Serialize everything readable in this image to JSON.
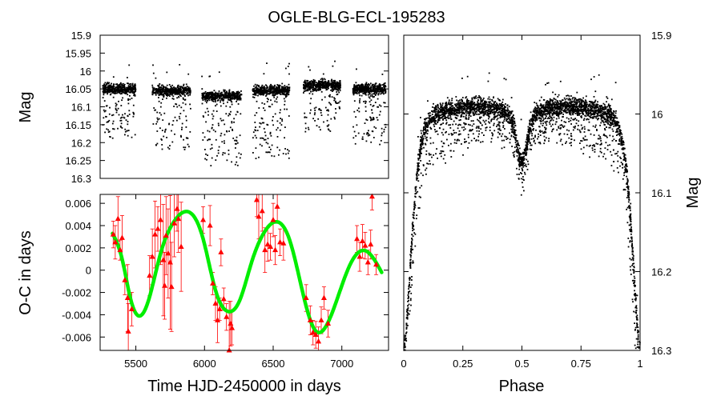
{
  "title": "OGLE-BLG-ECL-195283",
  "chart_data": [
    {
      "id": "lightcurve-time",
      "type": "scatter",
      "title": "OGLE-BLG-ECL-195283",
      "xlabel": "",
      "ylabel": "Mag",
      "xlim": [
        5240,
        7340
      ],
      "ylim": [
        16.3,
        15.9
      ],
      "y_inverted": true,
      "ytick_labels": [
        "15.9",
        "15.95",
        "16",
        "16.05",
        "16.1",
        "16.15",
        "16.2",
        "16.25",
        "16.3"
      ],
      "ytick_values": [
        15.9,
        15.95,
        16.0,
        16.05,
        16.1,
        16.15,
        16.2,
        16.25,
        16.3
      ],
      "seasons": [
        {
          "start": 5260,
          "end": 5500,
          "mag_center": 16.05,
          "faint_to": 16.19
        },
        {
          "start": 5620,
          "end": 5900,
          "mag_center": 16.055,
          "faint_to": 16.22
        },
        {
          "start": 5980,
          "end": 6270,
          "mag_center": 16.07,
          "faint_to": 16.265
        },
        {
          "start": 6350,
          "end": 6620,
          "mag_center": 16.055,
          "faint_to": 16.245
        },
        {
          "start": 6720,
          "end": 6990,
          "mag_center": 16.04,
          "faint_to": 16.17
        },
        {
          "start": 7080,
          "end": 7320,
          "mag_center": 16.05,
          "faint_to": 16.21
        }
      ]
    },
    {
      "id": "o-c",
      "type": "scatter",
      "xlabel": "Time HJD-2450000 in days",
      "ylabel": "O-C in days",
      "xlim": [
        5240,
        7340
      ],
      "ylim": [
        -0.0072,
        0.0068
      ],
      "xtick_labels": [
        "5500",
        "6000",
        "6500",
        "7000"
      ],
      "xtick_values": [
        5500,
        6000,
        6500,
        7000
      ],
      "ytick_labels": [
        "0.006",
        "0.004",
        "0.002",
        "0",
        "-0.002",
        "-0.004",
        "-0.006"
      ],
      "ytick_values": [
        0.006,
        0.004,
        0.002,
        0,
        -0.002,
        -0.004,
        -0.006
      ],
      "marker_color": "#ff0000",
      "fit_color": "#00ee00",
      "fit": {
        "x_start": 5330,
        "x_end": 7290,
        "curve": [
          [
            5330,
            0.0033
          ],
          [
            5400,
            0.001
          ],
          [
            5460,
            -0.0025
          ],
          [
            5520,
            -0.0041
          ],
          [
            5590,
            -0.0028
          ],
          [
            5680,
            0.0015
          ],
          [
            5780,
            0.0044
          ],
          [
            5890,
            0.0052
          ],
          [
            5990,
            0.0028
          ],
          [
            6080,
            -0.0018
          ],
          [
            6170,
            -0.0037
          ],
          [
            6260,
            -0.0026
          ],
          [
            6340,
            0.0006
          ],
          [
            6440,
            0.0035
          ],
          [
            6540,
            0.0043
          ],
          [
            6620,
            0.0027
          ],
          [
            6700,
            -0.0012
          ],
          [
            6800,
            -0.0053
          ],
          [
            6870,
            -0.0053
          ],
          [
            6960,
            -0.0028
          ],
          [
            7060,
            0.0005
          ],
          [
            7180,
            0.0017
          ],
          [
            7290,
            -0.0002
          ]
        ]
      },
      "points": [
        [
          5335,
          0.0032,
          0.0012
        ],
        [
          5350,
          0.0025,
          0.0015
        ],
        [
          5370,
          0.0046,
          0.002
        ],
        [
          5385,
          0.0018,
          0.0009
        ],
        [
          5400,
          0.0029,
          0.002
        ],
        [
          5420,
          -0.0009,
          0.0013
        ],
        [
          5440,
          -0.0025,
          0.003
        ],
        [
          5445,
          -0.0055,
          0.0025
        ],
        [
          5470,
          -0.0035,
          0.0015
        ],
        [
          5600,
          -0.0005,
          0.0018
        ],
        [
          5620,
          0.0012,
          0.0025
        ],
        [
          5640,
          0.0032,
          0.003
        ],
        [
          5660,
          0.0037,
          0.002
        ],
        [
          5680,
          0.0045,
          0.004
        ],
        [
          5700,
          0.0009,
          0.005
        ],
        [
          5710,
          -0.0014,
          0.003
        ],
        [
          5720,
          0.0031,
          0.0035
        ],
        [
          5735,
          0.0015,
          0.004
        ],
        [
          5750,
          0.0007,
          0.006
        ],
        [
          5760,
          -0.0015,
          0.004
        ],
        [
          5780,
          0.0042,
          0.003
        ],
        [
          5800,
          0.0055,
          0.002
        ],
        [
          5810,
          0.0046,
          0.003
        ],
        [
          5830,
          0.0021,
          0.004
        ],
        [
          5990,
          0.0045,
          0.0012
        ],
        [
          6040,
          0.004,
          0.0018
        ],
        [
          6060,
          -0.0012,
          0.001
        ],
        [
          6080,
          -0.003,
          0.0015
        ],
        [
          6095,
          -0.0045,
          0.002
        ],
        [
          6110,
          -0.0035,
          0.001
        ],
        [
          6120,
          0.0016,
          0.0012
        ],
        [
          6140,
          -0.0026,
          0.001
        ],
        [
          6160,
          -0.0042,
          0.0012
        ],
        [
          6180,
          -0.0073,
          0.0045
        ],
        [
          6190,
          -0.0048,
          0.002
        ],
        [
          6200,
          -0.0052,
          0.0015
        ],
        [
          6380,
          0.0063,
          0.0015
        ],
        [
          6395,
          0.0048,
          0.002
        ],
        [
          6420,
          0.0053,
          0.0018
        ],
        [
          6440,
          0.0018,
          0.002
        ],
        [
          6460,
          0.0023,
          0.0015
        ],
        [
          6480,
          0.0021,
          0.0012
        ],
        [
          6500,
          0.0045,
          0.0015
        ],
        [
          6515,
          0.0018,
          0.0013
        ],
        [
          6530,
          0.0057,
          0.0015
        ],
        [
          6550,
          0.0025,
          0.0012
        ],
        [
          6575,
          0.0024,
          0.0015
        ],
        [
          6740,
          -0.0025,
          0.0012
        ],
        [
          6770,
          -0.0045,
          0.0013
        ],
        [
          6790,
          -0.0056,
          0.0011
        ],
        [
          6810,
          -0.0058,
          0.0012
        ],
        [
          6830,
          -0.0064,
          0.0013
        ],
        [
          6850,
          -0.0045,
          0.0012
        ],
        [
          6870,
          -0.0025,
          0.001
        ],
        [
          6900,
          -0.0048,
          0.0012
        ],
        [
          7110,
          0.0028,
          0.0012
        ],
        [
          7130,
          0.0012,
          0.0013
        ],
        [
          7150,
          0.0026,
          0.0015
        ],
        [
          7170,
          0.0022,
          0.0012
        ],
        [
          7190,
          0.0007,
          0.0011
        ],
        [
          7210,
          0.0023,
          0.0013
        ],
        [
          7220,
          0.0066,
          0.0012
        ],
        [
          7250,
          0.0005,
          0.0009
        ]
      ]
    },
    {
      "id": "phased",
      "type": "scatter",
      "xlabel": "Phase",
      "ylabel": "Mag",
      "xlim": [
        0,
        1
      ],
      "ylim": [
        16.3,
        15.9
      ],
      "y_inverted": true,
      "xtick_labels": [
        "0",
        "0.25",
        "0.5",
        "0.75",
        "1"
      ],
      "xtick_values": [
        0,
        0.25,
        0.5,
        0.75,
        1
      ],
      "ytick_labels": [
        "15.9",
        "16",
        "16.1",
        "16.2",
        "16.3"
      ],
      "ytick_values": [
        15.9,
        16.0,
        16.1,
        16.2,
        16.3
      ],
      "model": {
        "max_mag": 15.99,
        "primary_min_mag": 16.28,
        "secondary_min_mag": 16.05,
        "secondary_phase": 0.5
      }
    }
  ]
}
